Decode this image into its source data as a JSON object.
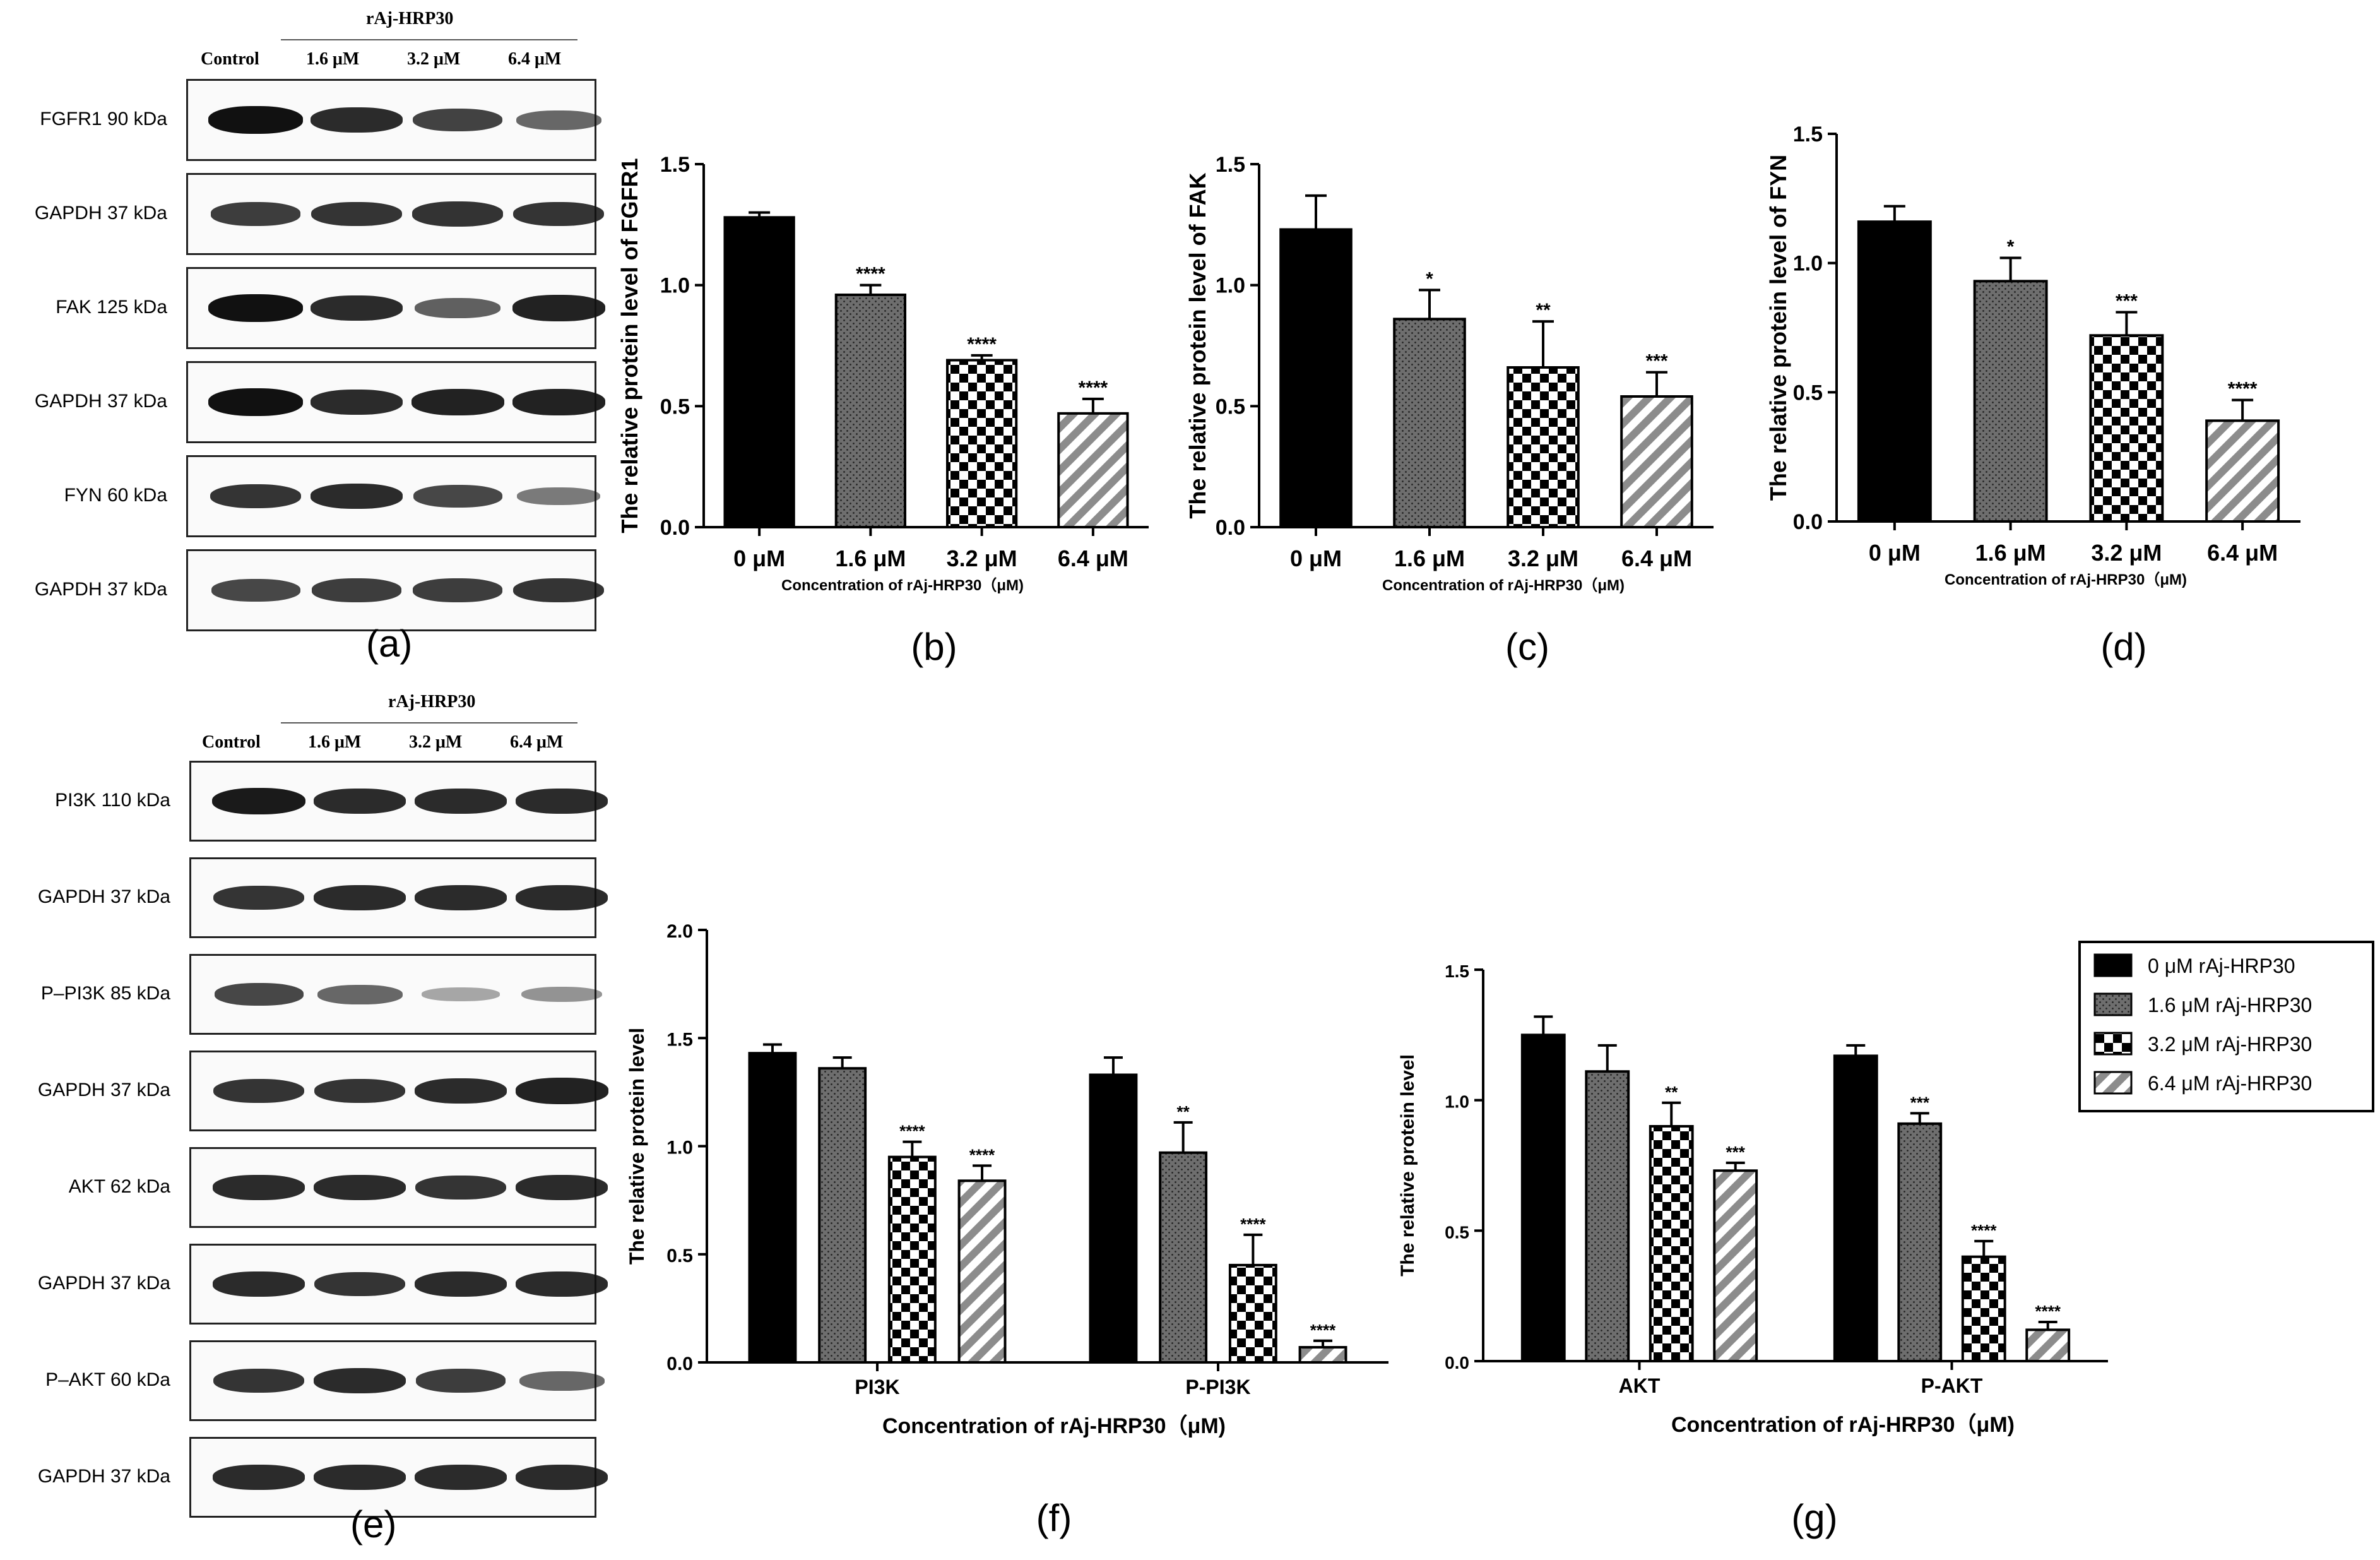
{
  "blots": {
    "top": {
      "group_label": "rAj-HRP30",
      "lanes": [
        "Control",
        "1.6 μM",
        "3.2 μM",
        "6.4 μM"
      ],
      "rows": [
        {
          "label": "FGFR1 90 kDa",
          "intensity": [
            1.0,
            0.85,
            0.72,
            0.5
          ]
        },
        {
          "label": "GAPDH 37 kDa",
          "intensity": [
            0.75,
            0.8,
            0.82,
            0.8
          ]
        },
        {
          "label": "FAK 125 kDa",
          "intensity": [
            1.0,
            0.85,
            0.55,
            0.9
          ]
        },
        {
          "label": "GAPDH 37 kDa",
          "intensity": [
            1.0,
            0.85,
            0.9,
            0.9
          ]
        },
        {
          "label": "FYN 60 kDa",
          "intensity": [
            0.8,
            0.85,
            0.7,
            0.4
          ]
        },
        {
          "label": "GAPDH 37 kDa",
          "intensity": [
            0.7,
            0.75,
            0.75,
            0.8
          ]
        }
      ],
      "panel_letter": "(a)"
    },
    "bottom": {
      "group_label": "rAj-HRP30",
      "lanes": [
        "Control",
        "1.6 μM",
        "3.2 μM",
        "6.4 μM"
      ],
      "rows": [
        {
          "label": "PI3K 110 kDa",
          "intensity": [
            0.95,
            0.85,
            0.85,
            0.85
          ]
        },
        {
          "label": "GAPDH 37 kDa",
          "intensity": [
            0.8,
            0.85,
            0.85,
            0.85
          ]
        },
        {
          "label": "P–PI3K 85 kDa",
          "intensity": [
            0.7,
            0.5,
            0.15,
            0.25
          ]
        },
        {
          "label": "GAPDH 37 kDa",
          "intensity": [
            0.8,
            0.8,
            0.85,
            0.9
          ]
        },
        {
          "label": "AKT 62 kDa",
          "intensity": [
            0.85,
            0.85,
            0.8,
            0.85
          ]
        },
        {
          "label": "GAPDH 37 kDa",
          "intensity": [
            0.85,
            0.8,
            0.85,
            0.85
          ]
        },
        {
          "label": "P–AKT 60 kDa",
          "intensity": [
            0.8,
            0.85,
            0.75,
            0.5
          ]
        },
        {
          "label": "GAPDH 37 kDa",
          "intensity": [
            0.85,
            0.85,
            0.85,
            0.85
          ]
        }
      ],
      "panel_letter": "(e)"
    }
  },
  "chart_data": [
    {
      "id": "b",
      "type": "bar",
      "panel_letter": "(b)",
      "categories": [
        "0 μM",
        "1.6 μM",
        "3.2 μM",
        "6.4 μM"
      ],
      "values": [
        1.28,
        0.96,
        0.69,
        0.47
      ],
      "errors": [
        0.02,
        0.04,
        0.02,
        0.06
      ],
      "significance": [
        "",
        "****",
        "****",
        "****"
      ],
      "ylabel": "The  relative protein level of FGFR1",
      "xlabel": "Concentration of rAj-HRP30（μM)",
      "ylim": [
        0,
        1.5
      ],
      "yticks": [
        "0.0",
        "0.5",
        "1.0",
        "1.5"
      ]
    },
    {
      "id": "c",
      "type": "bar",
      "panel_letter": "(c)",
      "categories": [
        "0 μM",
        "1.6 μM",
        "3.2 μM",
        "6.4 μM"
      ],
      "values": [
        1.23,
        0.86,
        0.66,
        0.54
      ],
      "errors": [
        0.14,
        0.12,
        0.19,
        0.1
      ],
      "significance": [
        "",
        "*",
        "**",
        "***"
      ],
      "ylabel": "The  relative protein level of FAK",
      "xlabel": "Concentration of rAj-HRP30（μM)",
      "ylim": [
        0,
        1.5
      ],
      "yticks": [
        "0.0",
        "0.5",
        "1.0",
        "1.5"
      ]
    },
    {
      "id": "d",
      "type": "bar",
      "panel_letter": "(d)",
      "categories": [
        "0 μM",
        "1.6 μM",
        "3.2 μM",
        "6.4 μM"
      ],
      "values": [
        1.16,
        0.93,
        0.72,
        0.39
      ],
      "errors": [
        0.06,
        0.09,
        0.09,
        0.08
      ],
      "significance": [
        "",
        "*",
        "***",
        "****"
      ],
      "ylabel": "The  relative protein level of FYN",
      "xlabel": "Concentration of rAj-HRP30（μM)",
      "ylim": [
        0,
        1.5
      ],
      "yticks": [
        "0.0",
        "0.5",
        "1.0",
        "1.5"
      ]
    },
    {
      "id": "f",
      "type": "bar",
      "panel_letter": "(f)",
      "categories": [
        "PI3K",
        "P-PI3K"
      ],
      "series": [
        {
          "name": "0 μM rAj-HRP30",
          "values": [
            1.43,
            1.33
          ],
          "errors": [
            0.04,
            0.08
          ],
          "significance": [
            "",
            ""
          ]
        },
        {
          "name": "1.6 μM rAj-HRP30",
          "values": [
            1.36,
            0.97
          ],
          "errors": [
            0.05,
            0.14
          ],
          "significance": [
            "",
            "**"
          ]
        },
        {
          "name": "3.2 μM rAj-HRP30",
          "values": [
            0.95,
            0.45
          ],
          "errors": [
            0.07,
            0.14
          ],
          "significance": [
            "****",
            "****"
          ]
        },
        {
          "name": "6.4 μM rAj-HRP30",
          "values": [
            0.84,
            0.07
          ],
          "errors": [
            0.07,
            0.03
          ],
          "significance": [
            "****",
            "****"
          ]
        }
      ],
      "ylabel": "The  relative protein level",
      "xlabel": "Concentration of rAj-HRP30（μM)",
      "ylim": [
        0,
        2.0
      ],
      "yticks": [
        "0.0",
        "0.5",
        "1.0",
        "1.5",
        "2.0"
      ]
    },
    {
      "id": "g",
      "type": "bar",
      "panel_letter": "(g)",
      "categories": [
        "AKT",
        "P-AKT"
      ],
      "series": [
        {
          "name": "0 μM rAj-HRP30",
          "values": [
            1.25,
            1.17
          ],
          "errors": [
            0.07,
            0.04
          ],
          "significance": [
            "",
            ""
          ]
        },
        {
          "name": "1.6 μM rAj-HRP30",
          "values": [
            1.11,
            0.91
          ],
          "errors": [
            0.1,
            0.04
          ],
          "significance": [
            "",
            "***"
          ]
        },
        {
          "name": "3.2 μM rAj-HRP30",
          "values": [
            0.9,
            0.4
          ],
          "errors": [
            0.09,
            0.06
          ],
          "significance": [
            "**",
            "****"
          ]
        },
        {
          "name": "6.4 μM rAj-HRP30",
          "values": [
            0.73,
            0.12
          ],
          "errors": [
            0.03,
            0.03
          ],
          "significance": [
            "***",
            "****"
          ]
        }
      ],
      "ylabel": "The  relative protein level",
      "xlabel": "Concentration of rAj-HRP30（μM)",
      "ylim": [
        0,
        1.5
      ],
      "yticks": [
        "0.0",
        "0.5",
        "1.0",
        "1.5"
      ],
      "legend": [
        "0 μM rAj-HRP30",
        "1.6 μM rAj-HRP30",
        "3.2 μM rAj-HRP30",
        "6.4 μM rAj-HRP30"
      ]
    }
  ]
}
